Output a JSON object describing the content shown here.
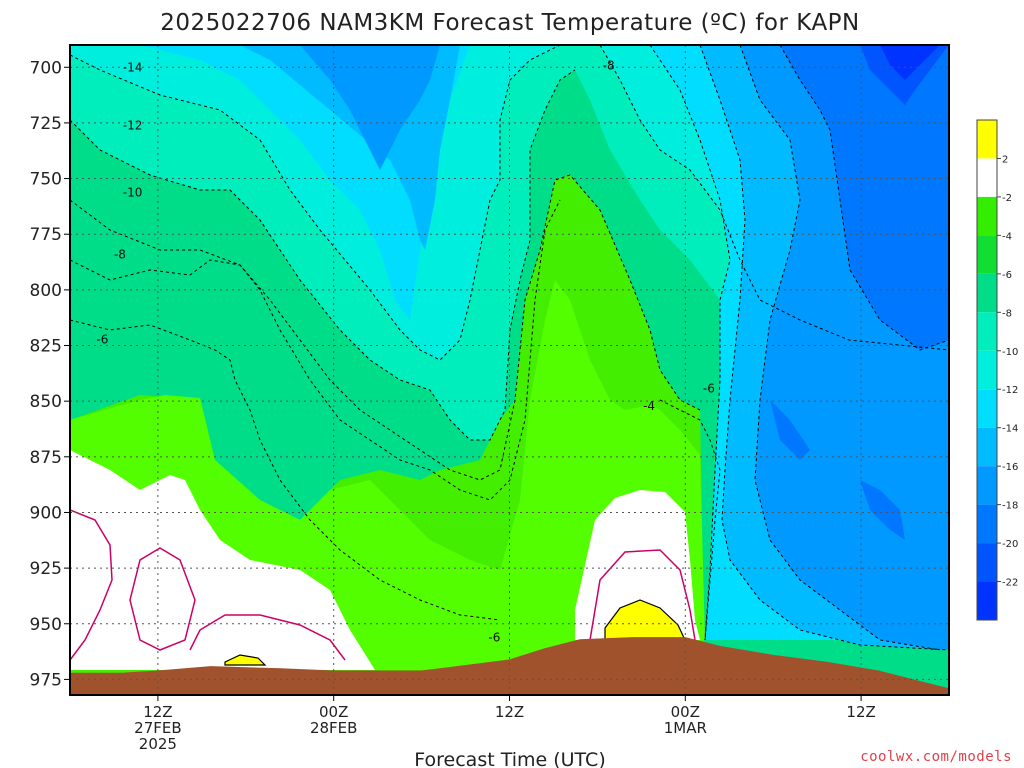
{
  "chart_data": {
    "type": "heatmap",
    "title": "2025022706 NAM3KM Forecast Temperature (ºC) for KAPN",
    "xlabel": "Forecast Time (UTC)",
    "ylabel": "",
    "y_ticks": [
      700,
      725,
      750,
      775,
      800,
      825,
      850,
      875,
      900,
      925,
      950,
      975
    ],
    "ylim": [
      982,
      690
    ],
    "x_range_hours": [
      -5,
      45
    ],
    "x_ticks": [
      {
        "hour": 0,
        "lines": [
          "12Z",
          "27FEB",
          "2025"
        ]
      },
      {
        "hour": 10,
        "lines": [
          "00Z",
          "28FEB"
        ]
      },
      {
        "hour": 20,
        "lines": [
          "12Z"
        ]
      },
      {
        "hour": 30,
        "lines": [
          "00Z",
          "1MAR"
        ]
      },
      {
        "hour": 40,
        "lines": [
          "12Z"
        ]
      }
    ],
    "colorbar": {
      "levels": [
        2,
        -2,
        -4,
        -6,
        -8,
        -10,
        -12,
        -14,
        -16,
        -18,
        -20,
        -22
      ],
      "colors": [
        "#ffff00",
        "#ffffff",
        "#33ee00",
        "#11dd33",
        "#00dd88",
        "#00eebb",
        "#00eedd",
        "#00ddff",
        "#00bbff",
        "#0099ff",
        "#0077ff",
        "#0055ff",
        "#0033ff"
      ]
    },
    "contour_labels": [
      {
        "text": "-14",
        "hour": -2.0,
        "p": 702
      },
      {
        "text": "-12",
        "hour": -2.0,
        "p": 728
      },
      {
        "text": "-10",
        "hour": -2.0,
        "p": 758
      },
      {
        "text": "-8",
        "hour": -2.5,
        "p": 786
      },
      {
        "text": "-6",
        "hour": -3.5,
        "p": 824
      },
      {
        "text": "-8",
        "hour": 25.3,
        "p": 701
      },
      {
        "text": "-6",
        "hour": 31.0,
        "p": 846
      },
      {
        "text": "-4",
        "hour": 27.6,
        "p": 854
      },
      {
        "text": "-6",
        "hour": 18.8,
        "p": 958
      }
    ],
    "surface_pressure": [
      {
        "hour": -5,
        "p": 972
      },
      {
        "hour": -2,
        "p": 972
      },
      {
        "hour": 0,
        "p": 971
      },
      {
        "hour": 3,
        "p": 969
      },
      {
        "hour": 7,
        "p": 970
      },
      {
        "hour": 10,
        "p": 971
      },
      {
        "hour": 15,
        "p": 971
      },
      {
        "hour": 17,
        "p": 969
      },
      {
        "hour": 20,
        "p": 966
      },
      {
        "hour": 22,
        "p": 961
      },
      {
        "hour": 24,
        "p": 957
      },
      {
        "hour": 27,
        "p": 956
      },
      {
        "hour": 30,
        "p": 956
      },
      {
        "hour": 32,
        "p": 960
      },
      {
        "hour": 35,
        "p": 964
      },
      {
        "hour": 38,
        "p": 967
      },
      {
        "hour": 41,
        "p": 971
      },
      {
        "hour": 44,
        "p": 977
      },
      {
        "hour": 45,
        "p": 979
      }
    ],
    "grid": true,
    "legend_position": "right"
  },
  "credit": "coolwx.com/models"
}
